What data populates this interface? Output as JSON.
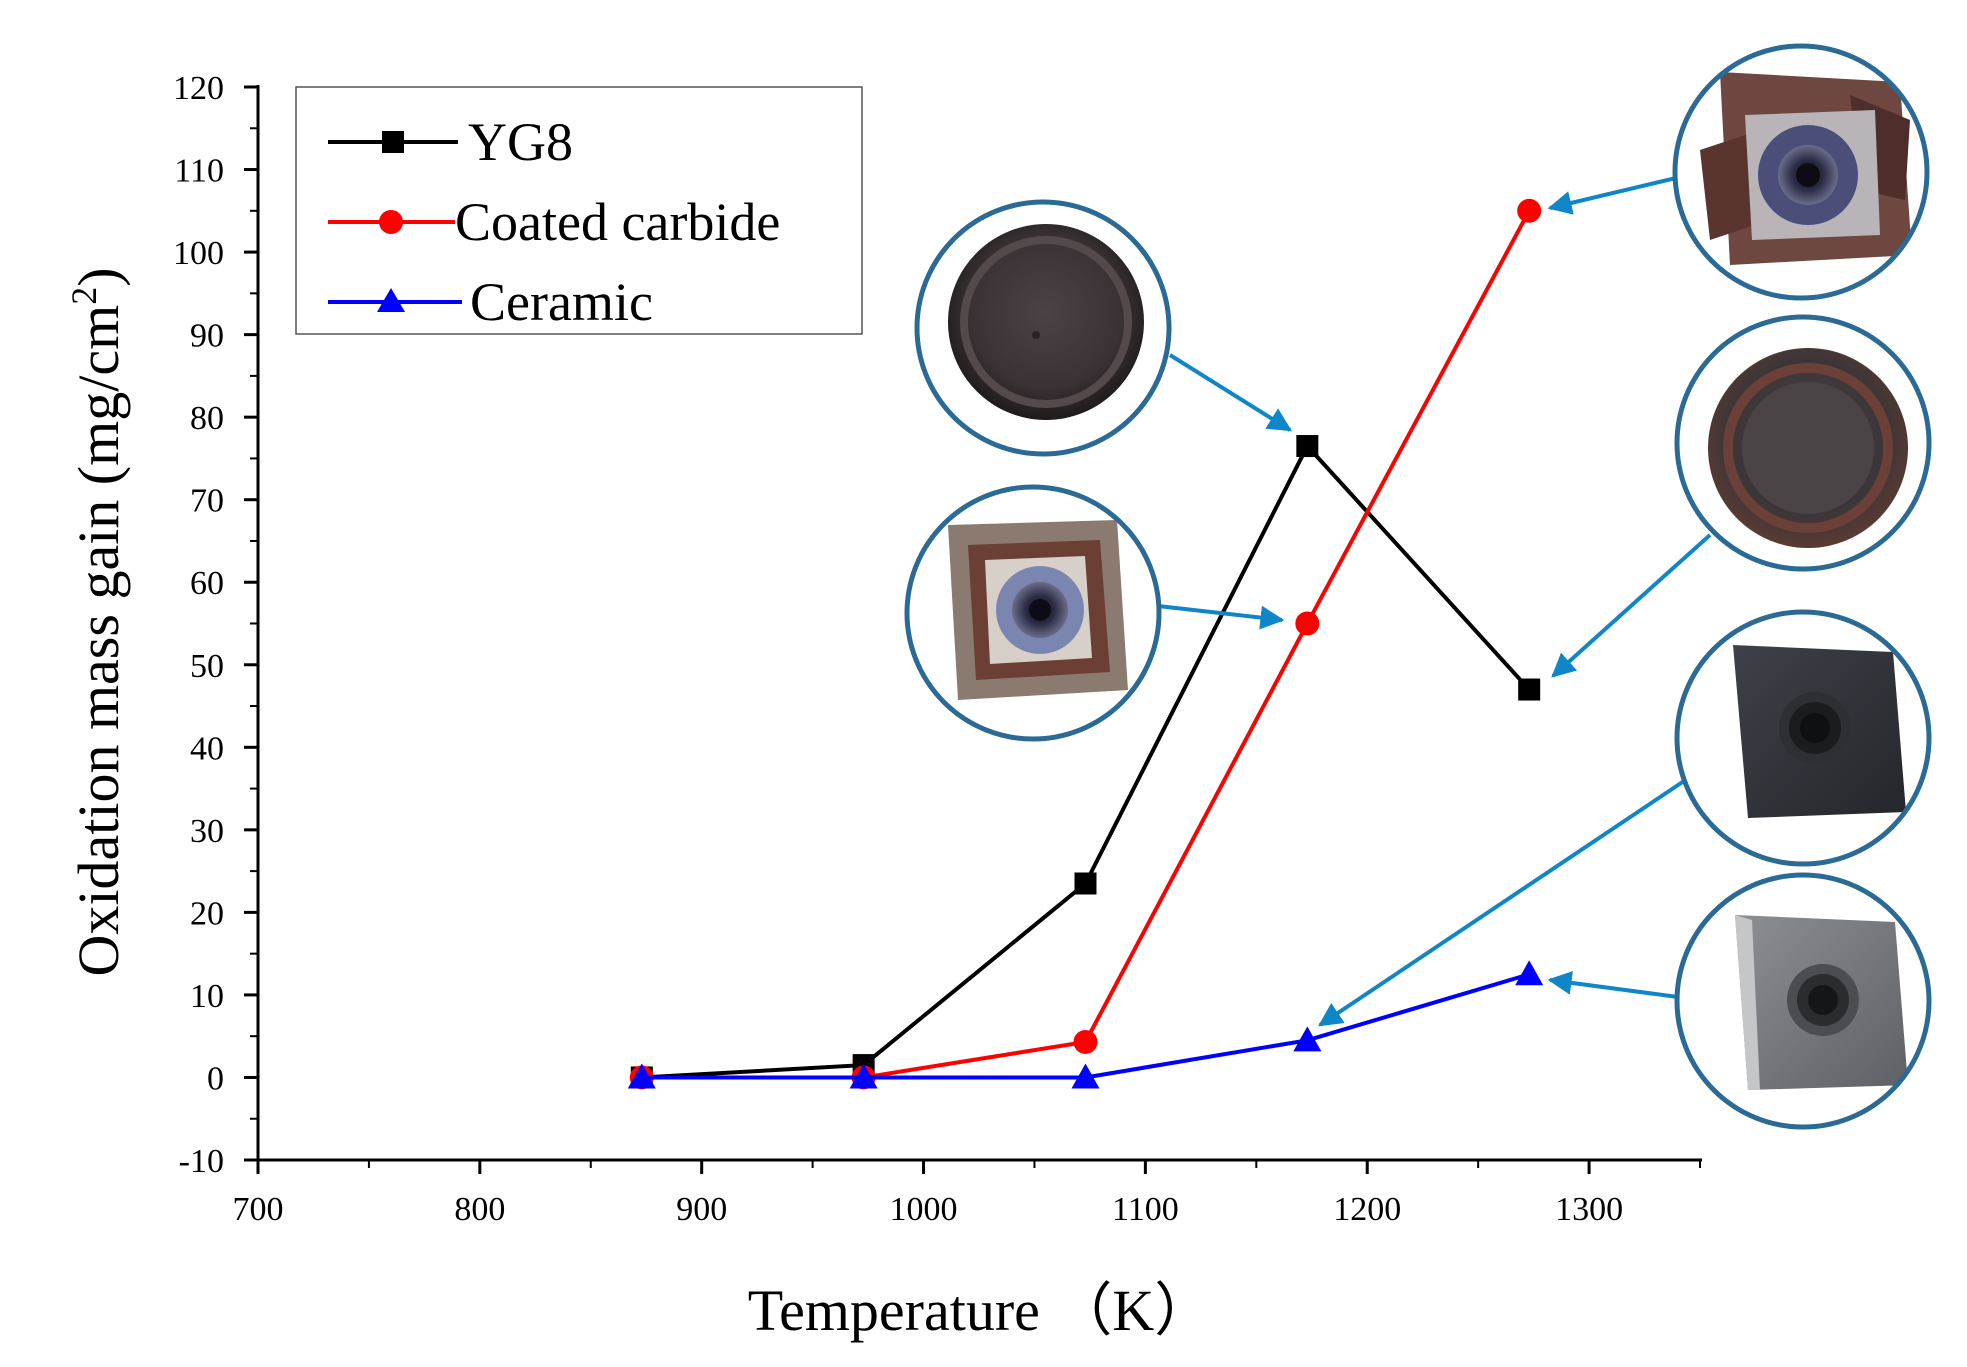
{
  "chart_data": {
    "type": "line",
    "title": "",
    "xlabel": "Temperature （K）",
    "ylabel": "Oxidation mass gain (mg/cm",
    "ylabel_superscript": "2",
    "ylabel_close": ")",
    "xlim": [
      700,
      1350
    ],
    "ylim": [
      -10,
      120
    ],
    "xticks": [
      700,
      800,
      900,
      1000,
      1100,
      1200,
      1300
    ],
    "yticks": [
      -10,
      0,
      10,
      20,
      30,
      40,
      50,
      60,
      70,
      80,
      90,
      100,
      110,
      120
    ],
    "x": [
      873,
      973,
      1073,
      1173,
      1273
    ],
    "series": [
      {
        "name": "YG8",
        "values": [
          0,
          1.5,
          23.5,
          76.5,
          47
        ],
        "color": "#000000",
        "marker": "square"
      },
      {
        "name": "Coated carbide",
        "values": [
          0,
          0,
          4.3,
          55,
          105
        ],
        "color": "#ff0000",
        "marker": "circle"
      },
      {
        "name": "Ceramic",
        "values": [
          0,
          0,
          0,
          4.5,
          12.5
        ],
        "color": "#0000ff",
        "marker": "triangle"
      }
    ],
    "legend_position": "top-left",
    "annotations": [
      {
        "name": "YG8 sample at 1173 K",
        "series": "YG8",
        "point_x": 1173,
        "sample": "round-dark"
      },
      {
        "name": "Coated carbide sample at 1173 K",
        "series": "Coated carbide",
        "point_x": 1173,
        "sample": "square-oxidized"
      },
      {
        "name": "Coated carbide sample at 1273 K",
        "series": "Coated carbide",
        "point_x": 1273,
        "sample": "square-heavily-oxidized"
      },
      {
        "name": "YG8 sample at 1273 K",
        "series": "YG8",
        "point_x": 1273,
        "sample": "round-brown"
      },
      {
        "name": "Ceramic sample at 1173 K",
        "series": "Ceramic",
        "point_x": 1173,
        "sample": "square-dark-gray"
      },
      {
        "name": "Ceramic sample at 1273 K",
        "series": "Ceramic",
        "point_x": 1273,
        "sample": "square-light-gray"
      }
    ],
    "colors": {
      "axis": "#000000",
      "callout": "#2a6a95",
      "arrow": "#0e86c8"
    }
  }
}
